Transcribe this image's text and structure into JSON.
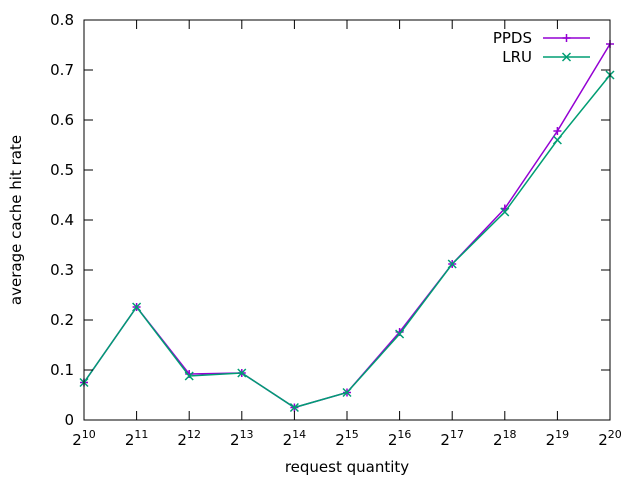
{
  "chart_data": {
    "type": "line",
    "title": "",
    "xlabel": "request quantity",
    "ylabel": "average cache hit rate",
    "x_scale": "log2",
    "x": [
      1024,
      2048,
      4096,
      8192,
      16384,
      32768,
      65536,
      131072,
      262144,
      524288,
      1048576
    ],
    "x_tick_labels": [
      {
        "base": "2",
        "exp": "10"
      },
      {
        "base": "2",
        "exp": "11"
      },
      {
        "base": "2",
        "exp": "12"
      },
      {
        "base": "2",
        "exp": "13"
      },
      {
        "base": "2",
        "exp": "14"
      },
      {
        "base": "2",
        "exp": "15"
      },
      {
        "base": "2",
        "exp": "16"
      },
      {
        "base": "2",
        "exp": "17"
      },
      {
        "base": "2",
        "exp": "18"
      },
      {
        "base": "2",
        "exp": "19"
      },
      {
        "base": "2",
        "exp": "20"
      }
    ],
    "ylim": [
      0,
      0.8
    ],
    "y_ticks": [
      "0",
      "0.1",
      "0.2",
      "0.3",
      "0.4",
      "0.5",
      "0.6",
      "0.7",
      "0.8"
    ],
    "grid": false,
    "legend_position": "top-right",
    "series": [
      {
        "name": "PPDS",
        "color": "#9400d3",
        "marker": "plus",
        "values": [
          0.075,
          0.226,
          0.092,
          0.094,
          0.025,
          0.055,
          0.176,
          0.312,
          0.423,
          0.578,
          0.752
        ]
      },
      {
        "name": "LRU",
        "color": "#009e73",
        "marker": "cross",
        "values": [
          0.075,
          0.226,
          0.088,
          0.094,
          0.025,
          0.055,
          0.172,
          0.312,
          0.416,
          0.56,
          0.69
        ]
      }
    ]
  }
}
